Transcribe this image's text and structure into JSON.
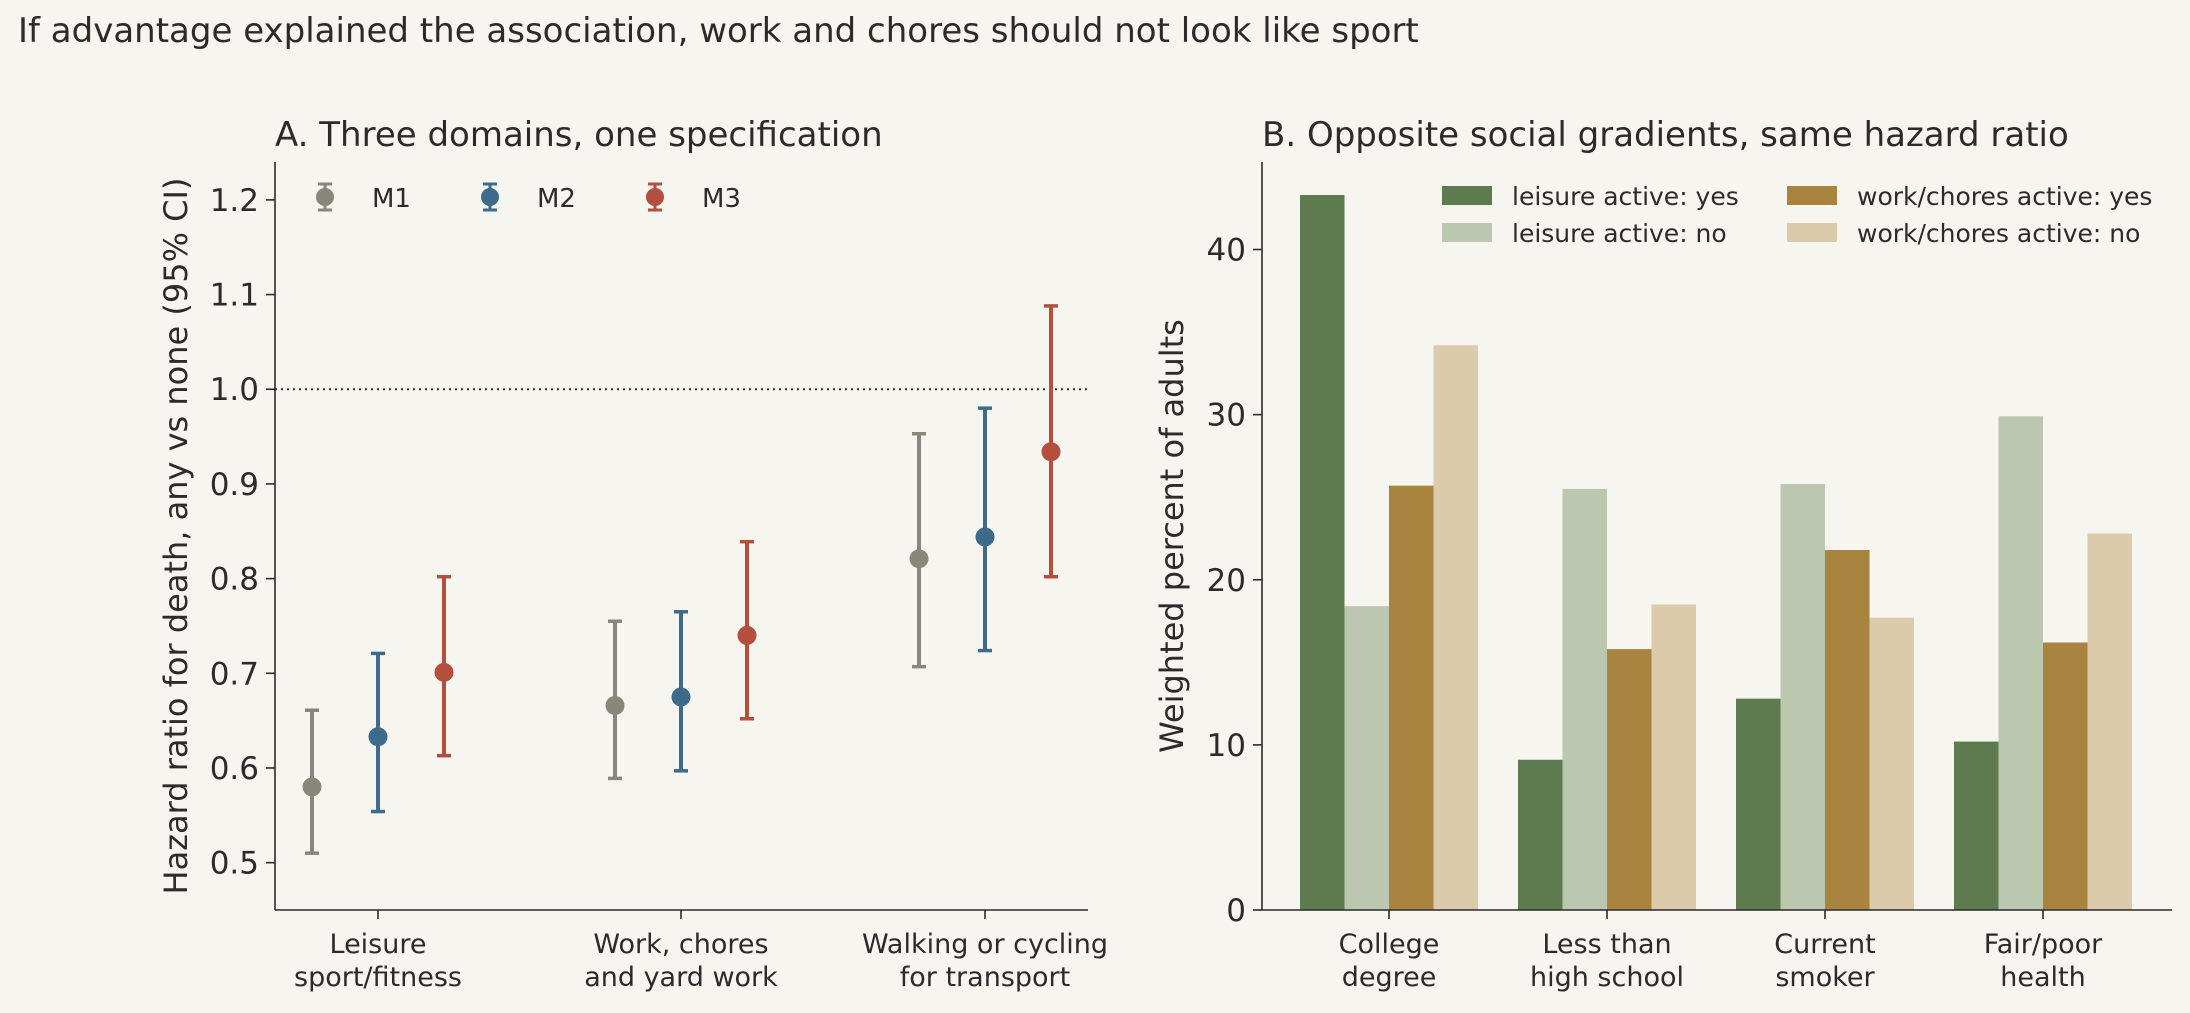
{
  "suptitle": "If advantage explained the association, work and chores should not look like sport",
  "colors": {
    "background": "#f7f5f0",
    "M1": "#8a8679",
    "M2": "#3e6a8c",
    "M3": "#b34f3c",
    "leisure_yes": "#5e7b4f",
    "leisure_no": "#bcc7b0",
    "work_yes": "#a8843f",
    "work_no": "#dbcbab"
  },
  "chart_data": [
    {
      "panel": "A",
      "type": "scatter",
      "title": "A. Three domains, one specification",
      "ylabel": "Hazard ratio for death, any vs none (95% CI)",
      "xlabel": "",
      "ylim": [
        0.45,
        1.24
      ],
      "yticks": [
        0.5,
        0.6,
        0.7,
        0.8,
        0.9,
        1.0,
        1.1,
        1.2
      ],
      "ytick_labels": [
        "0.5",
        "0.6",
        "0.7",
        "0.8",
        "0.9",
        "1.0",
        "1.1",
        "1.2"
      ],
      "reference_line": 1.0,
      "categories": [
        [
          "Leisure",
          "sport/fitness"
        ],
        [
          "Work, chores",
          "and yard work"
        ],
        [
          "Walking or cycling",
          "for transport"
        ]
      ],
      "legend_position": "top-left",
      "grid": false,
      "series": [
        {
          "name": "M1",
          "estimate": [
            0.58,
            0.666,
            0.821
          ],
          "lower": [
            0.51,
            0.589,
            0.707
          ],
          "upper": [
            0.661,
            0.755,
            0.953
          ]
        },
        {
          "name": "M2",
          "estimate": [
            0.633,
            0.675,
            0.844
          ],
          "lower": [
            0.554,
            0.597,
            0.724
          ],
          "upper": [
            0.721,
            0.765,
            0.98
          ]
        },
        {
          "name": "M3",
          "estimate": [
            0.701,
            0.74,
            0.934
          ],
          "lower": [
            0.613,
            0.652,
            0.802
          ],
          "upper": [
            0.802,
            0.839,
            1.088
          ]
        }
      ]
    },
    {
      "panel": "B",
      "type": "bar",
      "title": "B. Opposite social gradients, same hazard ratio",
      "ylabel": "Weighted percent of adults",
      "xlabel": "",
      "ylim": [
        0,
        45.3
      ],
      "yticks": [
        0,
        10,
        20,
        30,
        40
      ],
      "ytick_labels": [
        "0",
        "10",
        "20",
        "30",
        "40"
      ],
      "categories": [
        [
          "College",
          "degree"
        ],
        [
          "Less than",
          "high school"
        ],
        [
          "Current",
          "smoker"
        ],
        [
          "Fair/poor",
          "health"
        ]
      ],
      "legend_position": "top-right",
      "grid": false,
      "series": [
        {
          "name": "leisure active: yes",
          "values": [
            43.3,
            9.1,
            12.8,
            10.2
          ]
        },
        {
          "name": "leisure active: no",
          "values": [
            18.4,
            25.5,
            25.8,
            29.9
          ]
        },
        {
          "name": "work/chores active: yes",
          "values": [
            25.7,
            15.8,
            21.8,
            16.2
          ]
        },
        {
          "name": "work/chores active: no",
          "values": [
            34.2,
            18.5,
            17.7,
            22.8
          ]
        }
      ]
    }
  ]
}
